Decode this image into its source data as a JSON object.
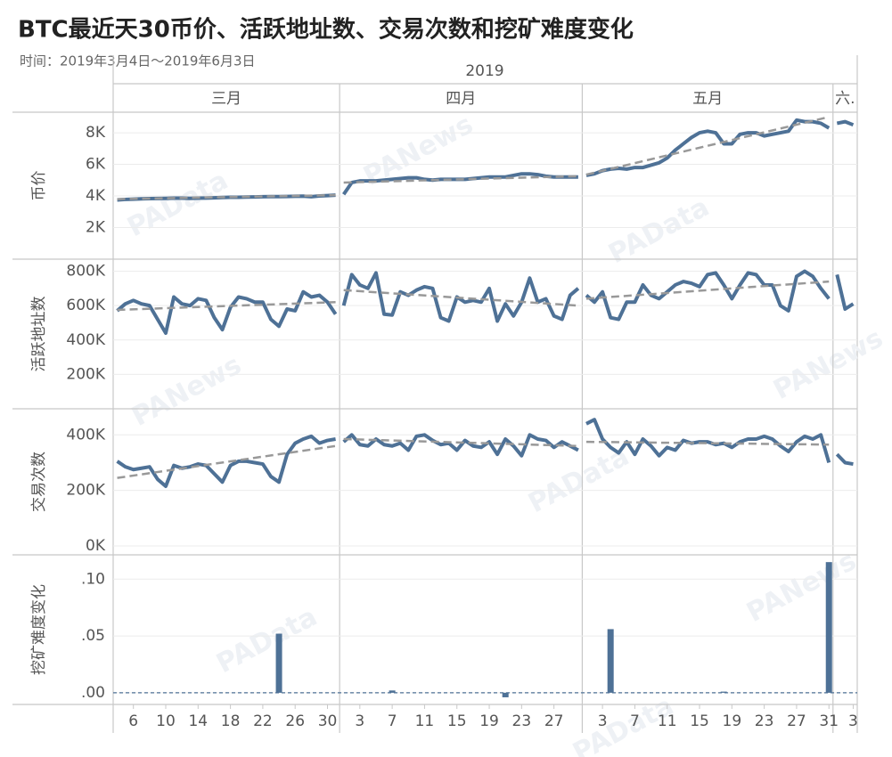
{
  "chart_data": {
    "type": "panels",
    "title": "BTC最近天30币价、活跃地址数、交易次数和挖矿难度变化",
    "subtitle": "时间：2019年3月4日～2019年6月3日",
    "year": "2019",
    "watermarks": [
      "PAData",
      "PANews"
    ],
    "months": [
      {
        "value": "2019-03",
        "label": "三月"
      },
      {
        "value": "2019-04",
        "label": "四月"
      },
      {
        "value": "2019-05",
        "label": "五月"
      },
      {
        "value": "2019-06",
        "label": "六."
      }
    ],
    "x": [
      "2019-03-04",
      "2019-03-05",
      "2019-03-06",
      "2019-03-07",
      "2019-03-08",
      "2019-03-09",
      "2019-03-10",
      "2019-03-11",
      "2019-03-12",
      "2019-03-13",
      "2019-03-14",
      "2019-03-15",
      "2019-03-16",
      "2019-03-17",
      "2019-03-18",
      "2019-03-19",
      "2019-03-20",
      "2019-03-21",
      "2019-03-22",
      "2019-03-23",
      "2019-03-24",
      "2019-03-25",
      "2019-03-26",
      "2019-03-27",
      "2019-03-28",
      "2019-03-29",
      "2019-03-30",
      "2019-03-31",
      "2019-04-01",
      "2019-04-02",
      "2019-04-03",
      "2019-04-04",
      "2019-04-05",
      "2019-04-06",
      "2019-04-07",
      "2019-04-08",
      "2019-04-09",
      "2019-04-10",
      "2019-04-11",
      "2019-04-12",
      "2019-04-13",
      "2019-04-14",
      "2019-04-15",
      "2019-04-16",
      "2019-04-17",
      "2019-04-18",
      "2019-04-19",
      "2019-04-20",
      "2019-04-21",
      "2019-04-22",
      "2019-04-23",
      "2019-04-24",
      "2019-04-25",
      "2019-04-26",
      "2019-04-27",
      "2019-04-28",
      "2019-04-29",
      "2019-04-30",
      "2019-05-01",
      "2019-05-02",
      "2019-05-03",
      "2019-05-04",
      "2019-05-05",
      "2019-05-06",
      "2019-05-07",
      "2019-05-08",
      "2019-05-09",
      "2019-05-10",
      "2019-05-11",
      "2019-05-12",
      "2019-05-13",
      "2019-05-14",
      "2019-05-15",
      "2019-05-16",
      "2019-05-17",
      "2019-05-18",
      "2019-05-19",
      "2019-05-20",
      "2019-05-21",
      "2019-05-22",
      "2019-05-23",
      "2019-05-24",
      "2019-05-25",
      "2019-05-26",
      "2019-05-27",
      "2019-05-28",
      "2019-05-29",
      "2019-05-30",
      "2019-05-31",
      "2019-06-01",
      "2019-06-02",
      "2019-06-03"
    ],
    "xticks": [
      {
        "value": "2019-03-06",
        "label": "6"
      },
      {
        "value": "2019-03-10",
        "label": "10"
      },
      {
        "value": "2019-03-14",
        "label": "14"
      },
      {
        "value": "2019-03-18",
        "label": "18"
      },
      {
        "value": "2019-03-22",
        "label": "22"
      },
      {
        "value": "2019-03-26",
        "label": "26"
      },
      {
        "value": "2019-03-30",
        "label": "30"
      },
      {
        "value": "2019-04-03",
        "label": "3"
      },
      {
        "value": "2019-04-07",
        "label": "7"
      },
      {
        "value": "2019-04-11",
        "label": "11"
      },
      {
        "value": "2019-04-15",
        "label": "15"
      },
      {
        "value": "2019-04-19",
        "label": "19"
      },
      {
        "value": "2019-04-23",
        "label": "23"
      },
      {
        "value": "2019-04-27",
        "label": "27"
      },
      {
        "value": "2019-05-03",
        "label": "3"
      },
      {
        "value": "2019-05-07",
        "label": "7"
      },
      {
        "value": "2019-05-11",
        "label": "11"
      },
      {
        "value": "2019-05-15",
        "label": "15"
      },
      {
        "value": "2019-05-19",
        "label": "19"
      },
      {
        "value": "2019-05-23",
        "label": "23"
      },
      {
        "value": "2019-05-27",
        "label": "27"
      },
      {
        "value": "2019-05-31",
        "label": "31"
      },
      {
        "value": "2019-06-03",
        "label": "3"
      }
    ],
    "panels": [
      {
        "type": "line",
        "ylabel": "币价",
        "color": "#4e7196",
        "trend_color": "#999999",
        "ylim": [
          0,
          9300
        ],
        "yticks": [
          {
            "value": 2000,
            "label": "2K"
          },
          {
            "value": 4000,
            "label": "4K"
          },
          {
            "value": 6000,
            "label": "6K"
          },
          {
            "value": 8000,
            "label": "8K"
          }
        ],
        "values": [
          3750,
          3780,
          3800,
          3820,
          3830,
          3840,
          3850,
          3860,
          3860,
          3850,
          3860,
          3870,
          3880,
          3900,
          3920,
          3920,
          3930,
          3940,
          3950,
          3960,
          3960,
          3970,
          3980,
          3990,
          3950,
          4000,
          4020,
          4050,
          4100,
          4850,
          4950,
          4950,
          4950,
          5000,
          5050,
          5100,
          5150,
          5150,
          5050,
          5000,
          5050,
          5050,
          5050,
          5050,
          5100,
          5150,
          5200,
          5200,
          5200,
          5300,
          5400,
          5400,
          5350,
          5250,
          5200,
          5200,
          5200,
          5200,
          5300,
          5400,
          5600,
          5700,
          5750,
          5700,
          5800,
          5800,
          5950,
          6100,
          6400,
          6900,
          7300,
          7700,
          8000,
          8100,
          8000,
          7300,
          7300,
          7900,
          8000,
          8000,
          7800,
          7900,
          8000,
          8100,
          8800,
          8700,
          8700,
          8600,
          8300,
          8600,
          8700,
          8500
        ],
        "trend": [
          [
            3800,
            4050
          ],
          [
            4850,
            5250
          ],
          [
            5350,
            9000
          ],
          null
        ]
      },
      {
        "type": "line",
        "ylabel": "活跃地址数",
        "color": "#4e7196",
        "trend_color": "#999999",
        "ylim": [
          0,
          870000
        ],
        "yticks": [
          {
            "value": 200000,
            "label": "200K"
          },
          {
            "value": 400000,
            "label": "400K"
          },
          {
            "value": 600000,
            "label": "600K"
          },
          {
            "value": 800000,
            "label": "800K"
          }
        ],
        "values": [
          570000,
          610000,
          630000,
          610000,
          600000,
          520000,
          440000,
          650000,
          610000,
          600000,
          640000,
          630000,
          530000,
          460000,
          590000,
          650000,
          640000,
          620000,
          620000,
          520000,
          480000,
          580000,
          570000,
          680000,
          650000,
          660000,
          620000,
          550000,
          600000,
          780000,
          720000,
          700000,
          790000,
          550000,
          545000,
          680000,
          660000,
          690000,
          710000,
          700000,
          530000,
          510000,
          650000,
          620000,
          630000,
          620000,
          700000,
          510000,
          610000,
          540000,
          620000,
          760000,
          620000,
          640000,
          540000,
          520000,
          660000,
          700000,
          660000,
          620000,
          680000,
          530000,
          520000,
          620000,
          620000,
          720000,
          660000,
          640000,
          680000,
          720000,
          740000,
          730000,
          710000,
          780000,
          790000,
          720000,
          640000,
          720000,
          790000,
          780000,
          720000,
          720000,
          600000,
          570000,
          770000,
          800000,
          770000,
          700000,
          640000,
          780000,
          580000,
          610000
        ],
        "trend": [
          [
            575000,
            620000
          ],
          [
            690000,
            600000
          ],
          [
            640000,
            740000
          ],
          null
        ]
      },
      {
        "type": "line",
        "ylabel": "交易次数",
        "color": "#4e7196",
        "trend_color": "#999999",
        "ylim": [
          -32000,
          494000
        ],
        "yticks": [
          {
            "value": 0,
            "label": "0K"
          },
          {
            "value": 200000,
            "label": "200K"
          },
          {
            "value": 400000,
            "label": "400K"
          }
        ],
        "values": [
          305000,
          285000,
          275000,
          280000,
          285000,
          240000,
          215000,
          290000,
          280000,
          285000,
          295000,
          290000,
          260000,
          230000,
          290000,
          305000,
          305000,
          300000,
          295000,
          250000,
          230000,
          330000,
          370000,
          385000,
          395000,
          370000,
          380000,
          385000,
          375000,
          400000,
          365000,
          360000,
          385000,
          365000,
          360000,
          370000,
          345000,
          395000,
          400000,
          380000,
          365000,
          370000,
          345000,
          380000,
          360000,
          355000,
          375000,
          330000,
          385000,
          360000,
          325000,
          400000,
          385000,
          380000,
          355000,
          375000,
          360000,
          345000,
          440000,
          455000,
          385000,
          355000,
          335000,
          375000,
          330000,
          385000,
          360000,
          325000,
          355000,
          345000,
          380000,
          370000,
          375000,
          375000,
          365000,
          370000,
          355000,
          375000,
          385000,
          385000,
          395000,
          385000,
          360000,
          340000,
          375000,
          395000,
          385000,
          400000,
          300000,
          330000,
          300000,
          295000
        ],
        "trend": [
          [
            245000,
            360000
          ],
          [
            385000,
            360000
          ],
          [
            375000,
            365000
          ],
          null
        ]
      },
      {
        "type": "bar",
        "ylabel": "挖矿难度变化",
        "color": "#4e7196",
        "ylim": [
          -0.0103,
          0.1214
        ],
        "yticks": [
          {
            "value": 0,
            "label": ".00"
          },
          {
            "value": 0.05,
            "label": ".05"
          },
          {
            "value": 0.1,
            "label": ".10"
          }
        ],
        "values": [
          0,
          0,
          0,
          0,
          0,
          0,
          0,
          0,
          0,
          0,
          0,
          0,
          0,
          0,
          0,
          0,
          0,
          0,
          0,
          0,
          0.052,
          0,
          0,
          0,
          0,
          0,
          0,
          0,
          0,
          0,
          0,
          0,
          0,
          0,
          0.002,
          0,
          0,
          0,
          0,
          0,
          0,
          0,
          0,
          0,
          0,
          0,
          0,
          0,
          -0.004,
          0,
          0,
          0,
          0,
          0,
          0,
          0,
          0,
          0,
          0,
          0,
          0,
          0.056,
          0,
          0,
          0,
          0,
          0,
          0,
          0,
          0,
          0,
          0,
          0,
          0,
          0,
          0.001,
          0,
          0,
          0,
          0,
          0,
          0,
          0,
          0,
          0,
          0,
          0,
          0,
          0.115,
          0,
          0,
          0
        ]
      }
    ]
  }
}
